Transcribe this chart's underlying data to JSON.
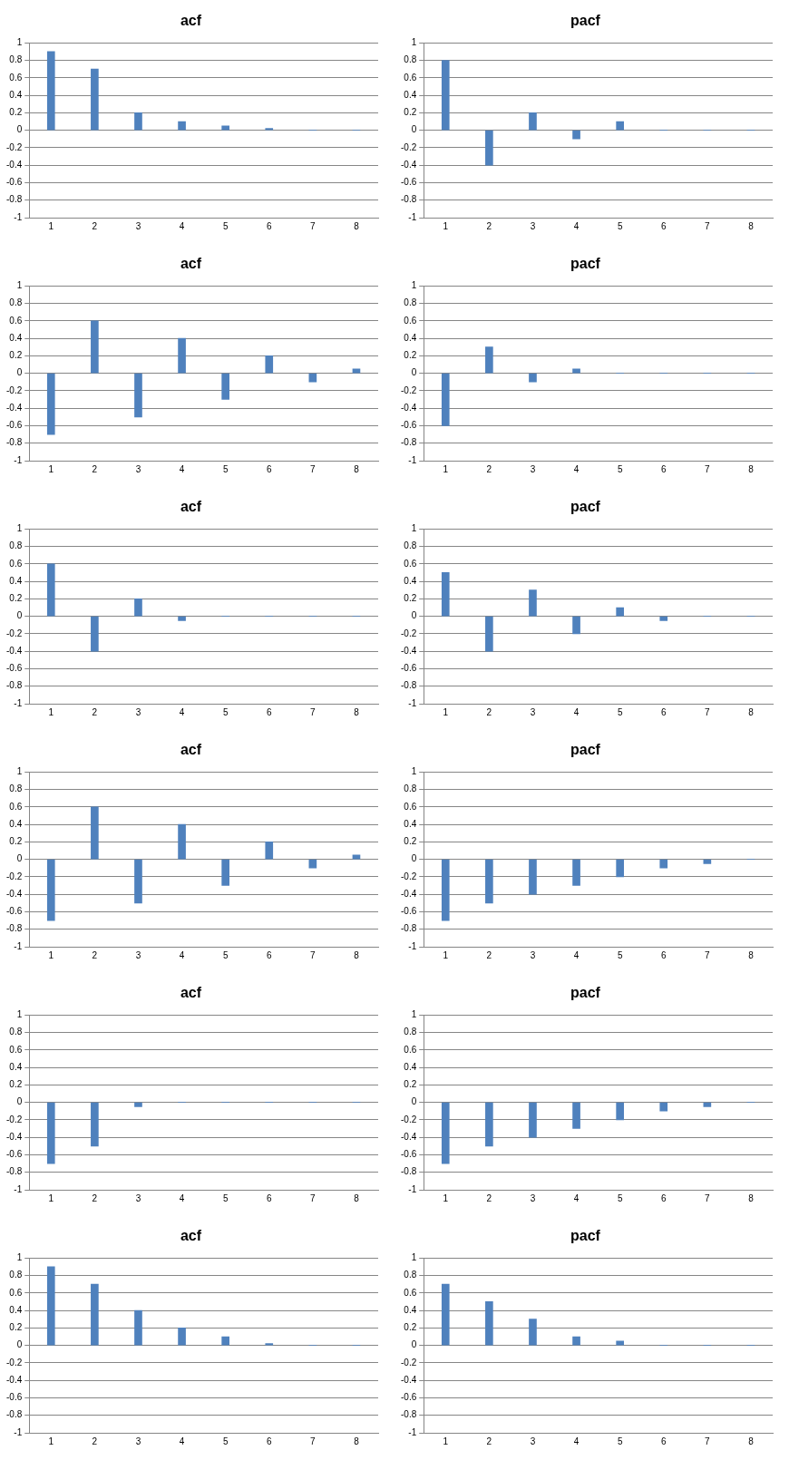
{
  "chart_data": [
    {
      "type": "bar",
      "title": "acf",
      "categories": [
        "1",
        "2",
        "3",
        "4",
        "5",
        "6",
        "7",
        "8"
      ],
      "values": [
        0.9,
        0.7,
        0.2,
        0.1,
        0.05,
        0.02,
        0,
        0
      ],
      "color": "#4f81bd",
      "ylim": [
        -1,
        1
      ],
      "yticks": [
        -1,
        -0.8,
        -0.6,
        -0.4,
        -0.2,
        0,
        0.2,
        0.4,
        0.6,
        0.8,
        1
      ],
      "grid": "y"
    },
    {
      "type": "bar",
      "title": "pacf",
      "categories": [
        "1",
        "2",
        "3",
        "4",
        "5",
        "6",
        "7",
        "8"
      ],
      "values": [
        0.8,
        -0.4,
        0.2,
        -0.1,
        0.1,
        0,
        0,
        0
      ],
      "color": "#4f81bd",
      "ylim": [
        -1,
        1
      ],
      "yticks": [
        -1,
        -0.8,
        -0.6,
        -0.4,
        -0.2,
        0,
        0.2,
        0.4,
        0.6,
        0.8,
        1
      ],
      "grid": "y"
    },
    {
      "type": "bar",
      "title": "acf",
      "categories": [
        "1",
        "2",
        "3",
        "4",
        "5",
        "6",
        "7",
        "8"
      ],
      "values": [
        -0.7,
        0.6,
        -0.5,
        0.4,
        -0.3,
        0.2,
        -0.1,
        0.05
      ],
      "color": "#4f81bd",
      "ylim": [
        -1,
        1
      ],
      "yticks": [
        -1,
        -0.8,
        -0.6,
        -0.4,
        -0.2,
        0,
        0.2,
        0.4,
        0.6,
        0.8,
        1
      ],
      "grid": "y"
    },
    {
      "type": "bar",
      "title": "pacf",
      "categories": [
        "1",
        "2",
        "3",
        "4",
        "5",
        "6",
        "7",
        "8"
      ],
      "values": [
        -0.6,
        0.3,
        -0.1,
        0.05,
        0,
        0,
        0,
        0
      ],
      "color": "#4f81bd",
      "ylim": [
        -1,
        1
      ],
      "yticks": [
        -1,
        -0.8,
        -0.6,
        -0.4,
        -0.2,
        0,
        0.2,
        0.4,
        0.6,
        0.8,
        1
      ],
      "grid": "y"
    },
    {
      "type": "bar",
      "title": "acf",
      "categories": [
        "1",
        "2",
        "3",
        "4",
        "5",
        "6",
        "7",
        "8"
      ],
      "values": [
        0.6,
        -0.4,
        0.2,
        -0.05,
        0,
        0,
        0,
        0
      ],
      "color": "#4f81bd",
      "ylim": [
        -1,
        1
      ],
      "yticks": [
        -1,
        -0.8,
        -0.6,
        -0.4,
        -0.2,
        0,
        0.2,
        0.4,
        0.6,
        0.8,
        1
      ],
      "grid": "y"
    },
    {
      "type": "bar",
      "title": "pacf",
      "categories": [
        "1",
        "2",
        "3",
        "4",
        "5",
        "6",
        "7",
        "8"
      ],
      "values": [
        0.5,
        -0.4,
        0.3,
        -0.2,
        0.1,
        -0.05,
        0,
        0
      ],
      "color": "#4f81bd",
      "ylim": [
        -1,
        1
      ],
      "yticks": [
        -1,
        -0.8,
        -0.6,
        -0.4,
        -0.2,
        0,
        0.2,
        0.4,
        0.6,
        0.8,
        1
      ],
      "grid": "y"
    },
    {
      "type": "bar",
      "title": "acf",
      "categories": [
        "1",
        "2",
        "3",
        "4",
        "5",
        "6",
        "7",
        "8"
      ],
      "values": [
        -0.7,
        0.6,
        -0.5,
        0.4,
        -0.3,
        0.2,
        -0.1,
        0.05
      ],
      "color": "#4f81bd",
      "ylim": [
        -1,
        1
      ],
      "yticks": [
        -1,
        -0.8,
        -0.6,
        -0.4,
        -0.2,
        0,
        0.2,
        0.4,
        0.6,
        0.8,
        1
      ],
      "grid": "y"
    },
    {
      "type": "bar",
      "title": "pacf",
      "categories": [
        "1",
        "2",
        "3",
        "4",
        "5",
        "6",
        "7",
        "8"
      ],
      "values": [
        -0.7,
        -0.5,
        -0.4,
        -0.3,
        -0.2,
        -0.1,
        -0.05,
        0
      ],
      "color": "#4f81bd",
      "ylim": [
        -1,
        1
      ],
      "yticks": [
        -1,
        -0.8,
        -0.6,
        -0.4,
        -0.2,
        0,
        0.2,
        0.4,
        0.6,
        0.8,
        1
      ],
      "grid": "y"
    },
    {
      "type": "bar",
      "title": "acf",
      "categories": [
        "1",
        "2",
        "3",
        "4",
        "5",
        "6",
        "7",
        "8"
      ],
      "values": [
        -0.7,
        -0.5,
        -0.05,
        0,
        0,
        0,
        0,
        0
      ],
      "color": "#4f81bd",
      "ylim": [
        -1,
        1
      ],
      "yticks": [
        -1,
        -0.8,
        -0.6,
        -0.4,
        -0.2,
        0,
        0.2,
        0.4,
        0.6,
        0.8,
        1
      ],
      "grid": "y"
    },
    {
      "type": "bar",
      "title": "pacf",
      "categories": [
        "1",
        "2",
        "3",
        "4",
        "5",
        "6",
        "7",
        "8"
      ],
      "values": [
        -0.7,
        -0.5,
        -0.4,
        -0.3,
        -0.2,
        -0.1,
        -0.05,
        0
      ],
      "color": "#4f81bd",
      "ylim": [
        -1,
        1
      ],
      "yticks": [
        -1,
        -0.8,
        -0.6,
        -0.4,
        -0.2,
        0,
        0.2,
        0.4,
        0.6,
        0.8,
        1
      ],
      "grid": "y"
    },
    {
      "type": "bar",
      "title": "acf",
      "categories": [
        "1",
        "2",
        "3",
        "4",
        "5",
        "6",
        "7",
        "8"
      ],
      "values": [
        0.9,
        0.7,
        0.4,
        0.2,
        0.1,
        0.02,
        0,
        0
      ],
      "color": "#4f81bd",
      "ylim": [
        -1,
        1
      ],
      "yticks": [
        -1,
        -0.8,
        -0.6,
        -0.4,
        -0.2,
        0,
        0.2,
        0.4,
        0.6,
        0.8,
        1
      ],
      "grid": "y"
    },
    {
      "type": "bar",
      "title": "pacf",
      "categories": [
        "1",
        "2",
        "3",
        "4",
        "5",
        "6",
        "7",
        "8"
      ],
      "values": [
        0.7,
        0.5,
        0.3,
        0.1,
        0.05,
        0,
        0,
        0
      ],
      "color": "#4f81bd",
      "ylim": [
        -1,
        1
      ],
      "yticks": [
        -1,
        -0.8,
        -0.6,
        -0.4,
        -0.2,
        0,
        0.2,
        0.4,
        0.6,
        0.8,
        1
      ],
      "grid": "y"
    }
  ]
}
